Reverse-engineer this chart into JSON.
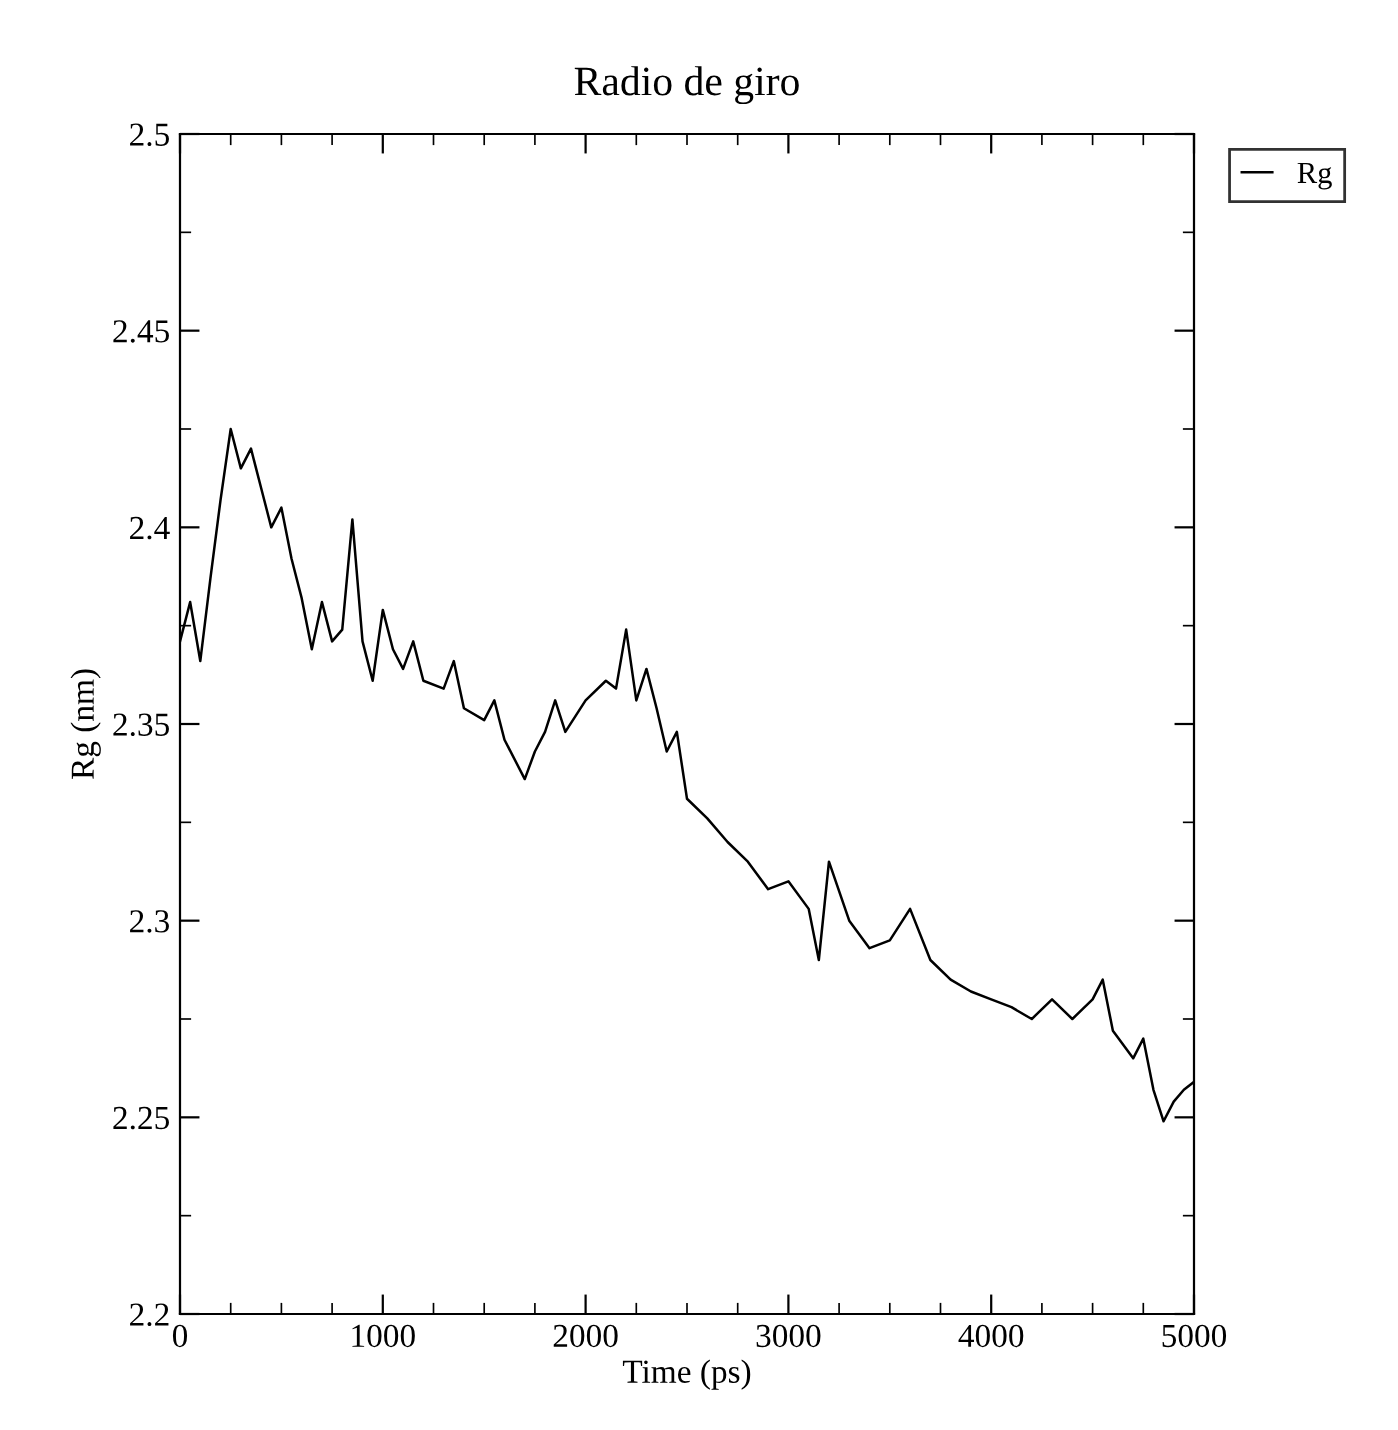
{
  "chart_data": {
    "type": "line",
    "title": "Radio de giro",
    "xlabel": "Time (ps)",
    "ylabel": "Rg (nm)",
    "xlim": [
      0,
      5000
    ],
    "xticks": [
      0,
      1000,
      2000,
      3000,
      4000,
      5000
    ],
    "ylim": [
      2.2,
      2.5
    ],
    "yticks": [
      2.2,
      2.25,
      2.3,
      2.35,
      2.4,
      2.45,
      2.5
    ],
    "grid": false,
    "legend": "top right",
    "marker": "none",
    "line_style": "solid",
    "series": [
      {
        "name": "Rg",
        "color": "#000000",
        "x": [
          0,
          50,
          100,
          150,
          200,
          250,
          300,
          350,
          400,
          450,
          500,
          550,
          600,
          650,
          700,
          750,
          800,
          850,
          900,
          950,
          1000,
          1050,
          1100,
          1150,
          1200,
          1300,
          1350,
          1400,
          1500,
          1550,
          1600,
          1700,
          1750,
          1800,
          1850,
          1900,
          2000,
          2100,
          2150,
          2200,
          2250,
          2300,
          2350,
          2400,
          2450,
          2500,
          2600,
          2700,
          2800,
          2900,
          3000,
          3100,
          3150,
          3200,
          3300,
          3400,
          3500,
          3600,
          3700,
          3800,
          3900,
          4000,
          4100,
          4200,
          4300,
          4400,
          4500,
          4550,
          4600,
          4700,
          4750,
          4800,
          4850,
          4900,
          4950,
          5000
        ],
        "values": [
          2.371,
          2.381,
          2.366,
          2.387,
          2.407,
          2.425,
          2.415,
          2.42,
          2.41,
          2.4,
          2.405,
          2.392,
          2.382,
          2.369,
          2.381,
          2.371,
          2.374,
          2.402,
          2.371,
          2.361,
          2.379,
          2.369,
          2.364,
          2.371,
          2.361,
          2.359,
          2.366,
          2.354,
          2.351,
          2.356,
          2.346,
          2.336,
          2.343,
          2.348,
          2.356,
          2.348,
          2.356,
          2.361,
          2.359,
          2.374,
          2.356,
          2.364,
          2.354,
          2.343,
          2.348,
          2.331,
          2.326,
          2.32,
          2.315,
          2.308,
          2.31,
          2.303,
          2.29,
          2.315,
          2.3,
          2.293,
          2.295,
          2.303,
          2.29,
          2.285,
          2.282,
          2.28,
          2.278,
          2.275,
          2.28,
          2.275,
          2.28,
          2.285,
          2.272,
          2.265,
          2.27,
          2.257,
          2.249,
          2.254,
          2.257,
          2.259
        ]
      }
    ]
  }
}
